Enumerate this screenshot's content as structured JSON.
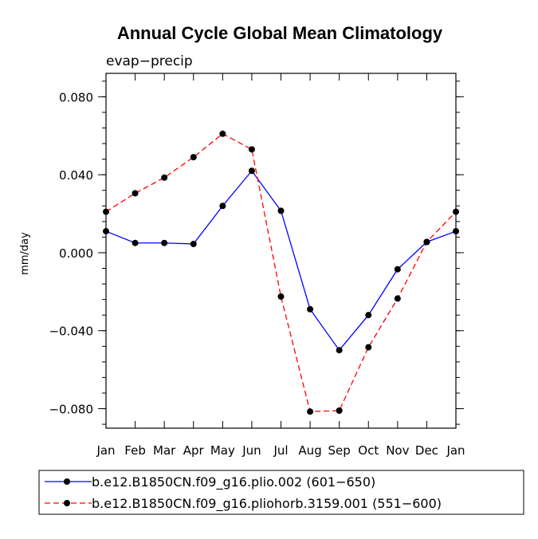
{
  "chart_data": {
    "type": "line",
    "title": "Annual Cycle Global Mean Climatology",
    "subtitle": "evap−precip",
    "xlabel": "",
    "ylabel": "mm/day",
    "categories": [
      "Jan",
      "Feb",
      "Mar",
      "Apr",
      "May",
      "Jun",
      "Jul",
      "Aug",
      "Sep",
      "Oct",
      "Nov",
      "Dec",
      "Jan"
    ],
    "ylim": [
      -0.09,
      0.092
    ],
    "yticks": [
      {
        "value": 0.08,
        "label": "0.080"
      },
      {
        "value": 0.04,
        "label": "0.040"
      },
      {
        "value": 0.0,
        "label": "0.000"
      },
      {
        "value": -0.04,
        "label": "−0.040"
      },
      {
        "value": -0.08,
        "label": "−0.080"
      }
    ],
    "yminor_step": 0.008,
    "series": [
      {
        "name": "b.e12.B1850CN.f09_g16.plio.002 (601−650)",
        "color": "#0000ff",
        "dash": "solid",
        "values": [
          0.011,
          0.005,
          0.005,
          0.0045,
          0.024,
          0.042,
          0.0215,
          -0.029,
          -0.05,
          -0.032,
          -0.0085,
          0.0055,
          0.011
        ]
      },
      {
        "name": "b.e12.B1850CN.f09_g16.pliohorb.3159.001 (551−600)",
        "color": "#ff0000",
        "dash": "dashed",
        "values": [
          0.021,
          0.0305,
          0.0385,
          0.049,
          0.061,
          0.053,
          -0.0225,
          -0.0815,
          -0.081,
          -0.0485,
          -0.0235,
          0.0055,
          0.021
        ]
      }
    ],
    "legend_position": "bottom"
  }
}
